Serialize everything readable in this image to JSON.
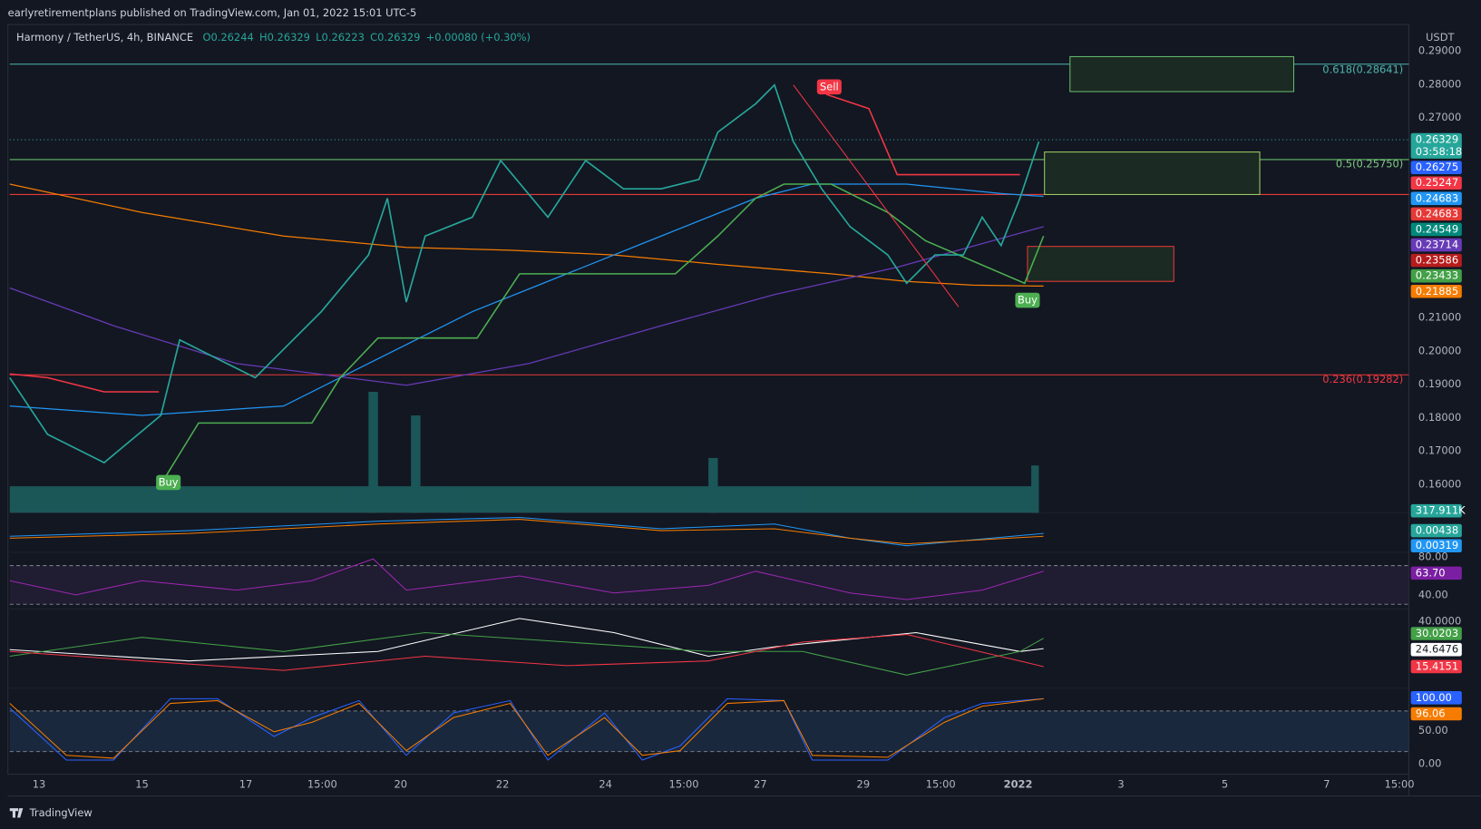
{
  "header": {
    "publisher": "earlyretirementplans published on TradingView.com, Jan 01, 2022 15:01 UTC-5"
  },
  "legend": {
    "symbol": "Harmony / TetherUS, 4h, BINANCE",
    "items": [
      "O0.26244",
      "H0.26329",
      "L0.26223",
      "C0.26329",
      "+0.00080 (+0.30%)"
    ]
  },
  "price_axis": {
    "unit": "USDT",
    "labels": [
      "0.29000",
      "0.28000",
      "0.27000",
      "0.21000",
      "0.20000",
      "0.19000",
      "0.18000",
      "0.17000",
      "0.16000"
    ]
  },
  "price_badges": [
    {
      "label": "0.26329",
      "color": "#26a69a",
      "countdown": "03:58:18"
    },
    {
      "label": "0.26275",
      "color": "#2962ff"
    },
    {
      "label": "0.25247",
      "color": "#f23645"
    },
    {
      "label": "0.24683",
      "color": "#2196f3"
    },
    {
      "label": "0.24683",
      "color": "#e53935"
    },
    {
      "label": "0.24549",
      "color": "#00897b"
    },
    {
      "label": "0.23714",
      "color": "#673ab7"
    },
    {
      "label": "0.23586",
      "color": "#b71c1c"
    },
    {
      "label": "0.23433",
      "color": "#43a047"
    },
    {
      "label": "0.21885",
      "color": "#f57c00"
    }
  ],
  "volume_badge": {
    "label": "317.911K",
    "color": "#26a69a"
  },
  "fib_levels": [
    {
      "label": "0.618(0.28641)",
      "color": "#4db6ac"
    },
    {
      "label": "0.5(0.25750)",
      "color": "#81c784"
    },
    {
      "label": "0.236(0.19282)",
      "color": "#f23645"
    }
  ],
  "signals": [
    {
      "label": "Sell",
      "color": "#f23645"
    },
    {
      "label": "Buy",
      "color": "#4caf50"
    },
    {
      "label": "Buy",
      "color": "#4caf50"
    }
  ],
  "panes": [
    {
      "axis": [],
      "badges": [
        {
          "label": "0.00438",
          "color": "#26a69a"
        },
        {
          "label": "0.00319",
          "color": "#2196f3"
        }
      ]
    },
    {
      "axis": [
        "80.00",
        "40.00"
      ],
      "badges": [
        {
          "label": "63.70",
          "color": "#7b1fa2"
        }
      ]
    },
    {
      "axis": [
        "40.0000"
      ],
      "badges": [
        {
          "label": "30.0203",
          "color": "#43a047"
        },
        {
          "label": "24.6476",
          "color": "#ffffff"
        },
        {
          "label": "15.4151",
          "color": "#f23645"
        }
      ]
    },
    {
      "axis": [
        "50.00",
        "0.00"
      ],
      "badges": [
        {
          "label": "100.00",
          "color": "#2962ff"
        },
        {
          "label": "96.06",
          "color": "#f57c00"
        }
      ]
    }
  ],
  "time_axis": [
    "13",
    "15",
    "17",
    "15:00",
    "20",
    "22",
    "24",
    "15:00",
    "27",
    "29",
    "15:00",
    "2022",
    "3",
    "5",
    "7",
    "15:00"
  ],
  "footer": {
    "brand": "TradingView"
  }
}
